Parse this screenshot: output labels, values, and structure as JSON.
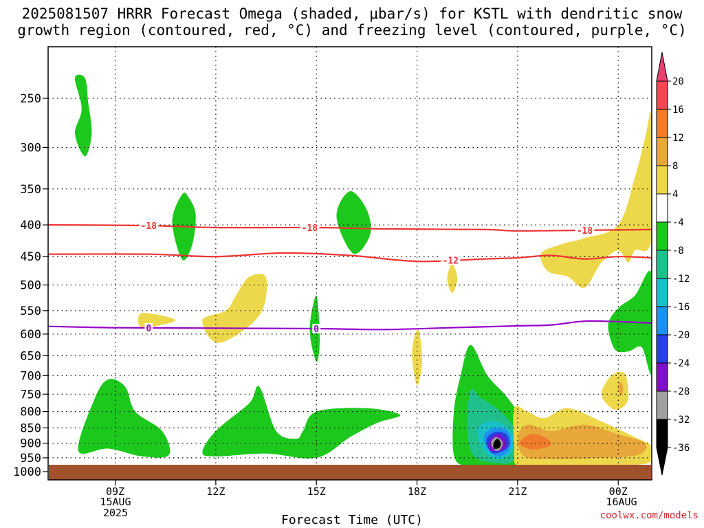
{
  "title": {
    "line1": "2025081507 HRRR Forecast Omega (shaded, μbar/s) for KSTL with dendritic snow",
    "line2": "growth region (contoured, red, °C) and freezing level (contoured, purple, °C)"
  },
  "credit": "coolwx.com/models",
  "xlabel": "Forecast Time (UTC)",
  "date_start": {
    "day": "15AUG",
    "year": "2025"
  },
  "date_end": {
    "day": "16AUG"
  },
  "colors": {
    "ground": "#a0522d",
    "freezing_line": "#9900cc",
    "dgz_lines": "#ee3333",
    "gridline": "#000000"
  },
  "chart_data": {
    "type": "heatmap",
    "title": "2025081507 HRRR Forecast Omega (shaded, μbar/s) for KSTL with dendritic snow growth region (contoured, red, °C) and freezing level (contoured, purple, °C)",
    "xlabel": "Forecast Time (UTC)",
    "ylabel": "",
    "x_ticks": [
      {
        "hour": 9,
        "label": "09Z"
      },
      {
        "hour": 12,
        "label": "12Z"
      },
      {
        "hour": 15,
        "label": "15Z"
      },
      {
        "hour": 18,
        "label": "18Z"
      },
      {
        "hour": 21,
        "label": "21Z"
      },
      {
        "hour": 24,
        "label": "00Z"
      }
    ],
    "xlim": [
      7,
      25
    ],
    "y_ticks": [
      250,
      300,
      350,
      400,
      450,
      500,
      550,
      600,
      650,
      700,
      750,
      800,
      850,
      900,
      950,
      1000
    ],
    "ylim": [
      1020,
      200
    ],
    "y_scale": "log-pressure",
    "colorbar": {
      "labels": [
        "20",
        "16",
        "12",
        "8",
        "4",
        "-4",
        "-8",
        "-12",
        "-16",
        "-20",
        "-24",
        "-28",
        "-32",
        "-36"
      ],
      "colors": [
        "#e8416f",
        "#f04850",
        "#f07b2a",
        "#e8a73a",
        "#ecd84a",
        "#ffffff",
        "#1cc81c",
        "#20c08c",
        "#18c0c8",
        "#1e90f0",
        "#2840e0",
        "#8010c8",
        "#a0a0a0",
        "#000000"
      ]
    },
    "freezing_level": {
      "label": "0",
      "label_hours": [
        10,
        15
      ],
      "points": [
        [
          7,
          583
        ],
        [
          9,
          586
        ],
        [
          12,
          587
        ],
        [
          15,
          588
        ],
        [
          17,
          590
        ],
        [
          19,
          586
        ],
        [
          21,
          582
        ],
        [
          22,
          580
        ],
        [
          23,
          572
        ],
        [
          24,
          573
        ],
        [
          25,
          576
        ]
      ]
    },
    "dgz_contours": [
      {
        "label": "-18",
        "label_hours": [
          10,
          14.8,
          23
        ],
        "points": [
          [
            7,
            400
          ],
          [
            10,
            401
          ],
          [
            12,
            404
          ],
          [
            15,
            404
          ],
          [
            17,
            406
          ],
          [
            20,
            407
          ],
          [
            21,
            409
          ],
          [
            23,
            408
          ],
          [
            25,
            407
          ]
        ]
      },
      {
        "label": "-12",
        "label_hours": [
          19
        ],
        "points": [
          [
            7,
            446
          ],
          [
            10,
            446
          ],
          [
            12,
            450
          ],
          [
            14,
            444
          ],
          [
            16,
            448
          ],
          [
            18,
            458
          ],
          [
            20,
            454
          ],
          [
            21,
            452
          ],
          [
            22,
            448
          ],
          [
            23,
            454
          ],
          [
            24,
            450
          ],
          [
            25,
            452
          ]
        ]
      }
    ],
    "omega_regions": [
      {
        "value": "-4 to -8",
        "color": "#1cc81c",
        "points": [
          [
            7.8,
            232
          ],
          [
            8,
            260
          ],
          [
            7.8,
            285
          ],
          [
            8.1,
            310
          ],
          [
            8.3,
            285
          ],
          [
            8.2,
            255
          ],
          [
            8.1,
            232
          ]
        ]
      },
      {
        "value": "-4 to -8",
        "color": "#1cc81c",
        "points": [
          [
            11,
            357
          ],
          [
            10.7,
            395
          ],
          [
            11,
            455
          ],
          [
            11.3,
            430
          ],
          [
            11.4,
            385
          ],
          [
            11.2,
            362
          ]
        ]
      },
      {
        "value": "-4 to -8",
        "color": "#1cc81c",
        "points": [
          [
            16,
            353
          ],
          [
            15.6,
            388
          ],
          [
            16.1,
            445
          ],
          [
            16.6,
            415
          ],
          [
            16.5,
            378
          ]
        ]
      },
      {
        "value": "-4 to -8",
        "color": "#1cc81c",
        "points": [
          [
            15,
            520
          ],
          [
            14.8,
            590
          ],
          [
            15,
            665
          ],
          [
            15.1,
            610
          ]
        ]
      },
      {
        "value": "-4 to -8",
        "color": "#1cc81c",
        "points": [
          [
            7.9,
            925
          ],
          [
            8.4,
            760
          ],
          [
            8.8,
            710
          ],
          [
            9.3,
            730
          ],
          [
            9.6,
            800
          ],
          [
            10.4,
            860
          ],
          [
            10.6,
            940
          ],
          [
            9.8,
            945
          ],
          [
            8.8,
            918
          ]
        ]
      },
      {
        "value": "-4 to -8",
        "color": "#1cc81c",
        "points": [
          [
            11.6,
            930
          ],
          [
            12,
            860
          ],
          [
            13,
            775
          ],
          [
            13.3,
            730
          ],
          [
            13.8,
            860
          ],
          [
            14.4,
            885
          ],
          [
            14.6,
            860
          ],
          [
            15,
            800
          ],
          [
            16.5,
            790
          ],
          [
            17.5,
            810
          ],
          [
            16.8,
            835
          ],
          [
            16,
            880
          ],
          [
            15,
            950
          ],
          [
            13.5,
            935
          ],
          [
            12,
            945
          ]
        ]
      },
      {
        "value": "-4 to -8",
        "color": "#1cc81c",
        "points": [
          [
            19.5,
            980
          ],
          [
            19.1,
            940
          ],
          [
            19.1,
            800
          ],
          [
            19.3,
            700
          ],
          [
            19.6,
            625
          ],
          [
            20.1,
            700
          ],
          [
            20.7,
            760
          ],
          [
            21.1,
            830
          ],
          [
            21.1,
            950
          ],
          [
            20.7,
            980
          ]
        ]
      },
      {
        "value": "-8 to -12",
        "color": "#20c08c",
        "points": [
          [
            20.5,
            970
          ],
          [
            19.7,
            945
          ],
          [
            19.5,
            850
          ],
          [
            19.6,
            740
          ],
          [
            19.9,
            760
          ],
          [
            20.5,
            800
          ],
          [
            21,
            870
          ],
          [
            20.9,
            955
          ]
        ]
      },
      {
        "value": "-12 to -16",
        "color": "#18c0c8",
        "points": [
          [
            20.4,
            955
          ],
          [
            20,
            925
          ],
          [
            19.8,
            860
          ],
          [
            20.1,
            830
          ],
          [
            20.6,
            840
          ],
          [
            20.9,
            880
          ],
          [
            20.8,
            935
          ]
        ]
      },
      {
        "value": "-16 to -20",
        "color": "#1e90f0",
        "points": [
          [
            20.4,
            945
          ],
          [
            20.1,
            920
          ],
          [
            20,
            875
          ],
          [
            20.3,
            850
          ],
          [
            20.7,
            860
          ],
          [
            20.8,
            900
          ],
          [
            20.7,
            930
          ]
        ]
      },
      {
        "value": "-20 to -24",
        "color": "#2840e0",
        "points": [
          [
            20.3,
            935
          ],
          [
            20.1,
            910
          ],
          [
            20.1,
            880
          ],
          [
            20.4,
            862
          ],
          [
            20.7,
            875
          ],
          [
            20.7,
            915
          ]
        ]
      },
      {
        "value": "-24 to -28",
        "color": "#8010c8",
        "points": [
          [
            20.2,
            925
          ],
          [
            20.15,
            895
          ],
          [
            20.4,
            870
          ],
          [
            20.65,
            890
          ],
          [
            20.6,
            920
          ]
        ]
      },
      {
        "value": "-28 to -32",
        "color": "#a0a0a0",
        "points": [
          [
            20.35,
            925
          ],
          [
            20.2,
            900
          ],
          [
            20.35,
            880
          ],
          [
            20.55,
            895
          ],
          [
            20.5,
            918
          ]
        ]
      },
      {
        "value": "<= -36",
        "color": "#000000",
        "points": [
          [
            20.3,
            918
          ],
          [
            20.28,
            900
          ],
          [
            20.4,
            885
          ],
          [
            20.5,
            900
          ],
          [
            20.45,
            915
          ]
        ]
      },
      {
        "value": "4 to 8",
        "color": "#ecd84a",
        "points": [
          [
            9.8,
            555
          ],
          [
            9.8,
            585
          ],
          [
            10.8,
            570
          ]
        ]
      },
      {
        "value": "4 to 8",
        "color": "#ecd84a",
        "points": [
          [
            11.6,
            570
          ],
          [
            12.3,
            550
          ],
          [
            12.6,
            520
          ],
          [
            13,
            485
          ],
          [
            13.5,
            487
          ],
          [
            13.3,
            560
          ],
          [
            12.1,
            620
          ]
        ]
      },
      {
        "value": "4 to 8",
        "color": "#ecd84a",
        "points": [
          [
            19,
            465
          ],
          [
            18.9,
            490
          ],
          [
            19.05,
            515
          ],
          [
            19.2,
            490
          ],
          [
            19.1,
            465
          ]
        ]
      },
      {
        "value": "4 to 8",
        "color": "#ecd84a",
        "points": [
          [
            18,
            590
          ],
          [
            17.85,
            645
          ],
          [
            18,
            725
          ],
          [
            18.15,
            670
          ],
          [
            18.1,
            610
          ]
        ]
      },
      {
        "value": "4 to 8",
        "color": "#ecd84a",
        "points": [
          [
            21,
            980
          ],
          [
            20.9,
            910
          ],
          [
            20.9,
            790
          ],
          [
            21.3,
            800
          ],
          [
            21.8,
            820
          ],
          [
            22.5,
            790
          ],
          [
            23.5,
            830
          ],
          [
            24.5,
            880
          ],
          [
            25,
            910
          ],
          [
            25,
            960
          ],
          [
            24.5,
            975
          ],
          [
            23,
            978
          ],
          [
            22,
            982
          ]
        ]
      },
      {
        "value": "4 to 8",
        "color": "#ecd84a",
        "points": [
          [
            23.5,
            750
          ],
          [
            23.8,
            700
          ],
          [
            24.2,
            695
          ],
          [
            24.3,
            760
          ],
          [
            24.1,
            790
          ],
          [
            23.8,
            790
          ]
        ]
      },
      {
        "value": "4 to 8",
        "color": "#ecd84a",
        "points": [
          [
            25,
            268
          ],
          [
            25,
            420
          ],
          [
            24.5,
            440
          ],
          [
            24.3,
            460
          ],
          [
            24,
            440
          ],
          [
            23.5,
            460
          ],
          [
            23,
            505
          ],
          [
            22.5,
            485
          ],
          [
            21.9,
            475
          ],
          [
            21.7,
            445
          ],
          [
            22.3,
            430
          ],
          [
            23,
            420
          ],
          [
            24,
            400
          ],
          [
            24.5,
            335
          ],
          [
            24.8,
            290
          ]
        ]
      },
      {
        "value": "8 to 12",
        "color": "#e8a73a",
        "points": [
          [
            21.2,
            945
          ],
          [
            21,
            880
          ],
          [
            21.3,
            840
          ],
          [
            22,
            860
          ],
          [
            23,
            840
          ],
          [
            24,
            870
          ],
          [
            24.8,
            900
          ],
          [
            24.6,
            940
          ],
          [
            23.5,
            950
          ],
          [
            22,
            955
          ]
        ]
      },
      {
        "value": "12 to 16",
        "color": "#f07b2a",
        "points": [
          [
            21.4,
            920
          ],
          [
            21.05,
            900
          ],
          [
            21.4,
            870
          ],
          [
            21.8,
            880
          ],
          [
            22,
            900
          ],
          [
            21.8,
            915
          ]
        ]
      },
      {
        "value": "8 to 12",
        "color": "#e8a73a",
        "points": [
          [
            24,
            720
          ],
          [
            24.05,
            755
          ],
          [
            24.15,
            740
          ],
          [
            24.1,
            720
          ]
        ]
      },
      {
        "value": "-4 to -8",
        "color": "#1cc81c",
        "points": [
          [
            25,
            480
          ],
          [
            24.5,
            520
          ],
          [
            24,
            545
          ],
          [
            23.7,
            580
          ],
          [
            23.9,
            635
          ],
          [
            24.3,
            640
          ],
          [
            24.7,
            630
          ],
          [
            25,
            690
          ]
        ]
      }
    ],
    "ground": {
      "from_pressure": 1000,
      "to_pressure": 1020
    }
  }
}
